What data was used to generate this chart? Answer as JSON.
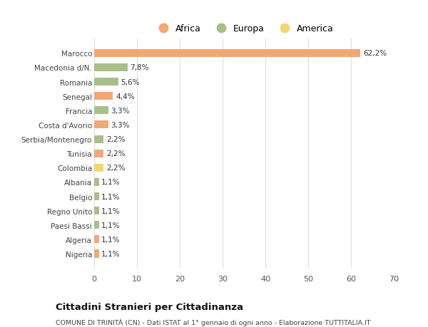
{
  "categories": [
    "Nigeria",
    "Algeria",
    "Paesi Bassi",
    "Regno Unito",
    "Belgio",
    "Albania",
    "Colombia",
    "Tunisia",
    "Serbia/Montenegro",
    "Costa d'Avorio",
    "Francia",
    "Senegal",
    "Romania",
    "Macedonia d/N.",
    "Marocco"
  ],
  "values": [
    1.1,
    1.1,
    1.1,
    1.1,
    1.1,
    1.1,
    2.2,
    2.2,
    2.2,
    3.3,
    3.3,
    4.4,
    5.6,
    7.8,
    62.2
  ],
  "labels": [
    "1,1%",
    "1,1%",
    "1,1%",
    "1,1%",
    "1,1%",
    "1,1%",
    "2,2%",
    "2,2%",
    "2,2%",
    "3,3%",
    "3,3%",
    "4,4%",
    "5,6%",
    "7,8%",
    "62,2%"
  ],
  "bar_colors": [
    "#F0A875",
    "#F0A875",
    "#A8BF8A",
    "#A8BF8A",
    "#A8BF8A",
    "#A8BF8A",
    "#F0D870",
    "#F0A875",
    "#A8BF8A",
    "#F0A875",
    "#A8BF8A",
    "#F0A875",
    "#A8BF8A",
    "#A8BF8A",
    "#F0A875"
  ],
  "title": "Cittadini Stranieri per Cittadinanza",
  "subtitle": "COMUNE DI TRINITÀ (CN) - Dati ISTAT al 1° gennaio di ogni anno - Elaborazione TUTTITALIA.IT",
  "xlim": [
    0,
    70
  ],
  "xticks": [
    0,
    10,
    20,
    30,
    40,
    50,
    60,
    70
  ],
  "bg_color": "#FFFFFF",
  "grid_color": "#DDDDDD",
  "legend_labels": [
    "Africa",
    "Europa",
    "America"
  ],
  "legend_colors": [
    "#F0A875",
    "#A8BF8A",
    "#F0D870"
  ]
}
